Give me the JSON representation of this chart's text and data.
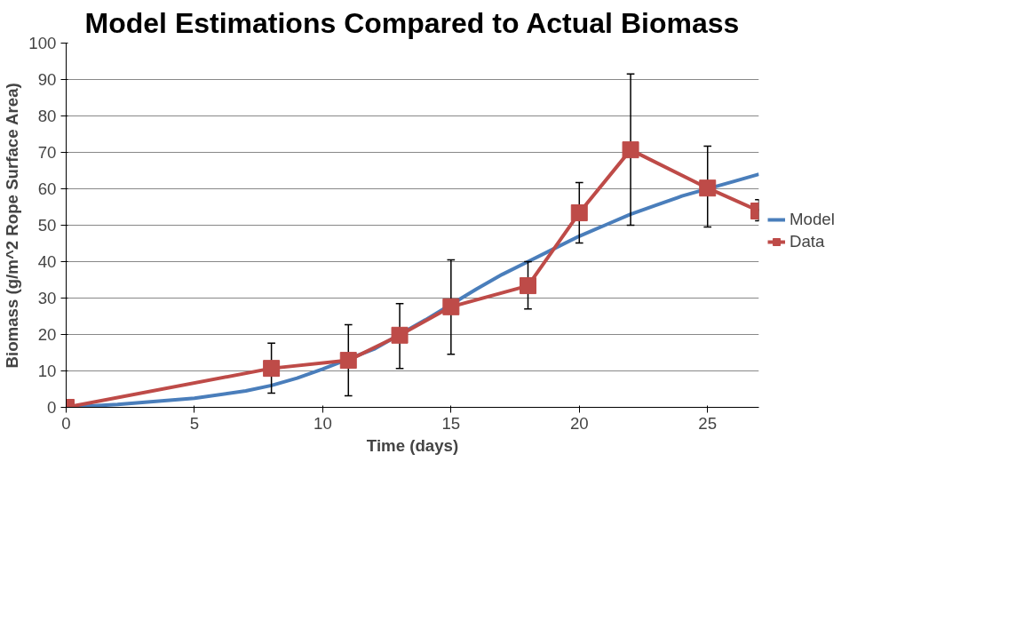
{
  "chart_data": {
    "type": "line",
    "title": "Model Estimations Compared to Actual Biomass",
    "xlabel": "Time (days)",
    "ylabel": "Biomass (g/m^2 Rope Surface Area)",
    "xlim": [
      0,
      27
    ],
    "xticks": [
      0,
      5,
      10,
      15,
      20,
      25
    ],
    "ylim": [
      0,
      100
    ],
    "yticks": [
      0,
      10,
      20,
      30,
      40,
      50,
      60,
      70,
      80,
      90,
      100
    ],
    "grid": "y",
    "legend": "right",
    "series": [
      {
        "name": "Model",
        "color": "#4a7ebb",
        "marker": "none",
        "x": [
          0,
          2,
          5,
          7,
          8,
          9,
          10,
          12,
          14,
          16,
          17,
          18,
          19,
          20,
          21,
          22,
          23,
          24,
          26,
          27
        ],
        "values": [
          0,
          0.8,
          2.5,
          4.5,
          6,
          8,
          10.5,
          16,
          24,
          32.5,
          36.5,
          40,
          43.5,
          47,
          50,
          53,
          55.5,
          58,
          62,
          64
        ]
      },
      {
        "name": "Data",
        "color": "#be4b48",
        "marker": "square",
        "x": [
          0,
          8,
          11,
          13,
          15,
          18,
          20,
          22,
          25,
          27
        ],
        "values": [
          0,
          10.7,
          12.9,
          19.8,
          27.6,
          33.4,
          53.4,
          70.7,
          60.2,
          53.9
        ],
        "errors": [
          null,
          [
            3.9,
            17.6
          ],
          [
            3.2,
            22.7
          ],
          [
            10.7,
            28.5
          ],
          [
            14.6,
            40.5
          ],
          [
            27,
            40
          ],
          [
            45.1,
            61.7
          ],
          [
            50,
            91.5
          ],
          [
            49.5,
            71.7
          ],
          [
            51.2,
            57
          ]
        ]
      }
    ]
  }
}
